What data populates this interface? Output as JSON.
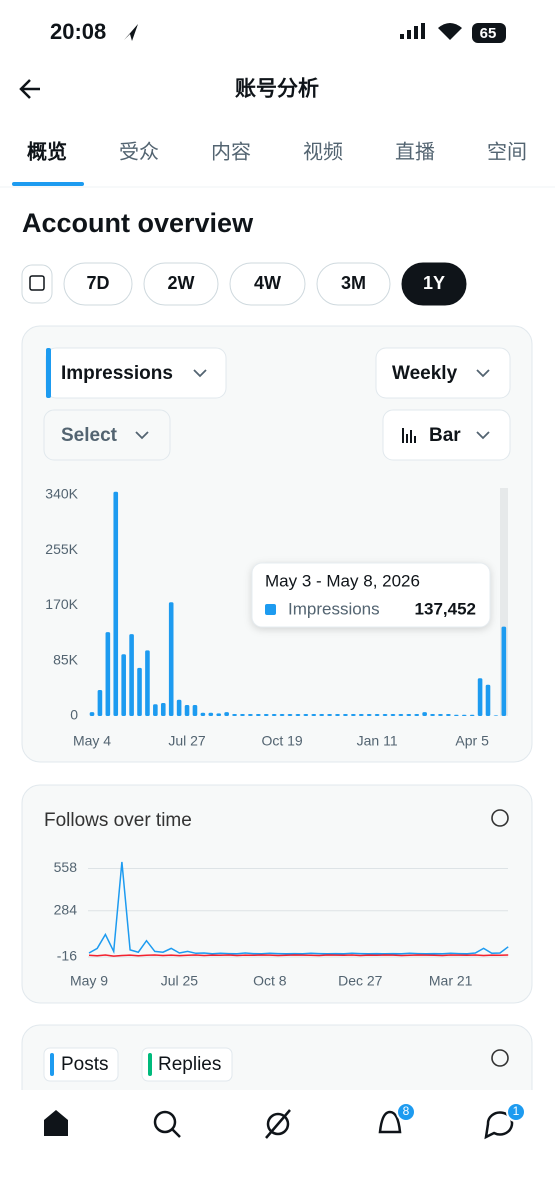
{
  "status_bar": {
    "time": "20:08",
    "battery": "65"
  },
  "header": {
    "title": "账号分析"
  },
  "tabs": [
    "概览",
    "受众",
    "内容",
    "视频",
    "直播",
    "空间"
  ],
  "section_title": "Account overview",
  "ranges": [
    "7D",
    "2W",
    "4W",
    "3M",
    "1Y"
  ],
  "impressions_controls": {
    "metric": "Impressions",
    "interval": "Weekly",
    "compare": "Select",
    "style": "Bar"
  },
  "chart_data": [
    {
      "type": "bar",
      "categories": [
        "May 4",
        null,
        null,
        null,
        null,
        null,
        null,
        null,
        null,
        null,
        null,
        null,
        "Jul 27",
        null,
        null,
        null,
        null,
        null,
        null,
        null,
        null,
        null,
        null,
        null,
        "Oct 19",
        null,
        null,
        null,
        null,
        null,
        null,
        null,
        null,
        null,
        null,
        null,
        "Jan 11",
        null,
        null,
        null,
        null,
        null,
        null,
        null,
        null,
        null,
        null,
        null,
        "Apr 5",
        null,
        null,
        null,
        null
      ],
      "series": [
        {
          "name": "Impressions",
          "color": "#1d9bf0",
          "values": [
            6000,
            40000,
            129000,
            345000,
            95000,
            126000,
            74000,
            101000,
            18000,
            20000,
            175000,
            25000,
            17000,
            17000,
            5000,
            5000,
            4000,
            6000,
            3000,
            3000,
            3000,
            3000,
            3000,
            3000,
            3000,
            3000,
            3000,
            3000,
            3000,
            3000,
            3000,
            3000,
            3000,
            3000,
            3000,
            3000,
            3000,
            3000,
            3000,
            3000,
            3000,
            3000,
            6000,
            3000,
            3000,
            3000,
            2000,
            2000,
            2000,
            58000,
            48000,
            1000,
            137452
          ]
        }
      ],
      "ylim": [
        0,
        350000
      ],
      "yticks": [
        0,
        {
          "value": 85000,
          "label": "85K"
        },
        {
          "value": 170000,
          "label": "170K"
        },
        {
          "value": 255000,
          "label": "255K"
        },
        {
          "value": 340000,
          "label": "340K"
        }
      ],
      "tooltip": {
        "title": "May 3 - May 8, 2026",
        "value_label": "137,452"
      }
    },
    {
      "type": "line",
      "title": "Follows over time",
      "categories": [
        "May 9",
        null,
        null,
        null,
        null,
        null,
        null,
        null,
        null,
        null,
        null,
        "Jul 25",
        null,
        null,
        null,
        null,
        null,
        null,
        null,
        null,
        null,
        null,
        "Oct 8",
        null,
        null,
        null,
        null,
        null,
        null,
        null,
        null,
        null,
        null,
        "Dec 27",
        null,
        null,
        null,
        null,
        null,
        null,
        null,
        null,
        null,
        null,
        "Mar 21",
        null,
        null,
        null,
        null,
        null,
        null,
        null
      ],
      "series": [
        {
          "color": "#1d9bf0",
          "values": [
            10,
            40,
            130,
            20,
            600,
            30,
            15,
            90,
            20,
            15,
            40,
            10,
            20,
            8,
            10,
            5,
            8,
            6,
            5,
            10,
            6,
            5,
            8,
            6,
            5,
            6,
            5,
            8,
            6,
            5,
            6,
            5,
            8,
            6,
            5,
            6,
            5,
            6,
            5,
            8,
            6,
            5,
            6,
            5,
            8,
            6,
            5,
            10,
            40,
            8,
            10,
            50
          ]
        },
        {
          "color": "#f4212e",
          "values": [
            -5,
            -8,
            -3,
            -10,
            -6,
            -4,
            -8,
            -5,
            -3,
            -6,
            -4,
            -7,
            -5,
            -3,
            -6,
            -4,
            -5,
            -3,
            -6,
            -4,
            -5,
            -3,
            -4,
            -6,
            -5,
            -3,
            -4,
            -5,
            -6,
            -3,
            -4,
            -5,
            -3,
            -6,
            -4,
            -5,
            -3,
            -4,
            -6,
            -5,
            -3,
            -4,
            -5,
            -6,
            -3,
            -4,
            -5,
            -3,
            -6,
            -4,
            -5,
            -3
          ]
        }
      ],
      "ylim": [
        -16,
        600
      ],
      "yticks": [
        -16,
        284,
        558
      ]
    }
  ],
  "posts_card": {
    "chips": [
      "Posts",
      "Replies"
    ]
  },
  "nav": {
    "badges": [
      "8",
      "1"
    ]
  }
}
